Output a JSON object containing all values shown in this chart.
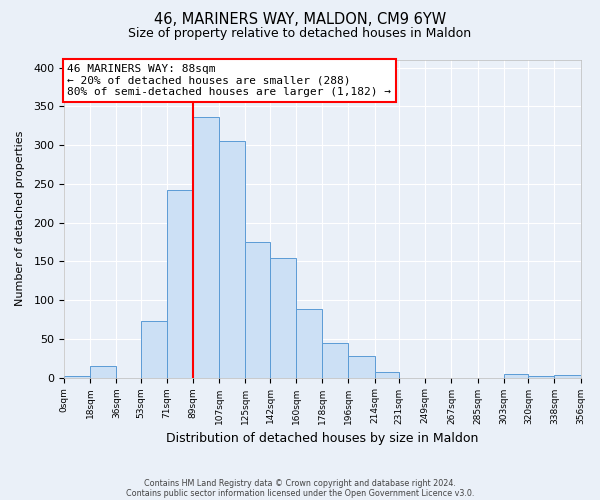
{
  "title": "46, MARINERS WAY, MALDON, CM9 6YW",
  "subtitle": "Size of property relative to detached houses in Maldon",
  "xlabel": "Distribution of detached houses by size in Maldon",
  "ylabel": "Number of detached properties",
  "bin_edges": [
    0,
    18,
    36,
    53,
    71,
    89,
    107,
    125,
    142,
    160,
    178,
    196,
    214,
    231,
    249,
    267,
    285,
    303,
    320,
    338,
    356
  ],
  "bin_labels": [
    "0sqm",
    "18sqm",
    "36sqm",
    "53sqm",
    "71sqm",
    "89sqm",
    "107sqm",
    "125sqm",
    "142sqm",
    "160sqm",
    "178sqm",
    "196sqm",
    "214sqm",
    "231sqm",
    "249sqm",
    "267sqm",
    "285sqm",
    "303sqm",
    "320sqm",
    "338sqm",
    "356sqm"
  ],
  "counts": [
    2,
    15,
    0,
    73,
    242,
    336,
    306,
    175,
    155,
    88,
    44,
    28,
    7,
    0,
    0,
    0,
    0,
    5,
    2,
    3
  ],
  "bar_color": "#cce0f5",
  "bar_edge_color": "#5b9bd5",
  "marker_x": 89,
  "marker_color": "red",
  "annotation_text": "46 MARINERS WAY: 88sqm\n← 20% of detached houses are smaller (288)\n80% of semi-detached houses are larger (1,182) →",
  "annotation_box_color": "white",
  "annotation_box_edge_color": "red",
  "ylim": [
    0,
    410
  ],
  "xlim": [
    0,
    356
  ],
  "background_color": "#eaf0f8",
  "footer_line1": "Contains HM Land Registry data © Crown copyright and database right 2024.",
  "footer_line2": "Contains public sector information licensed under the Open Government Licence v3.0."
}
